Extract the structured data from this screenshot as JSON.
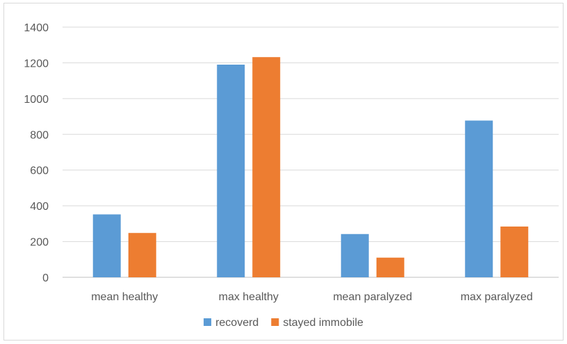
{
  "chart_data": {
    "type": "bar",
    "title": "",
    "xlabel": "",
    "ylabel": "",
    "categories": [
      "mean healthy",
      "max healthy",
      "mean paralyzed",
      "max paralyzed"
    ],
    "series": [
      {
        "name": "recoverd",
        "color": "#5b9bd5",
        "values": [
          352,
          1190,
          242,
          877
        ]
      },
      {
        "name": "stayed immobile",
        "color": "#ed7d31",
        "values": [
          248,
          1232,
          110,
          284
        ]
      }
    ],
    "ylim": [
      0,
      1400
    ],
    "yticks": [
      0,
      200,
      400,
      600,
      800,
      1000,
      1200,
      1400
    ],
    "grid": true,
    "legend_position": "bottom"
  }
}
